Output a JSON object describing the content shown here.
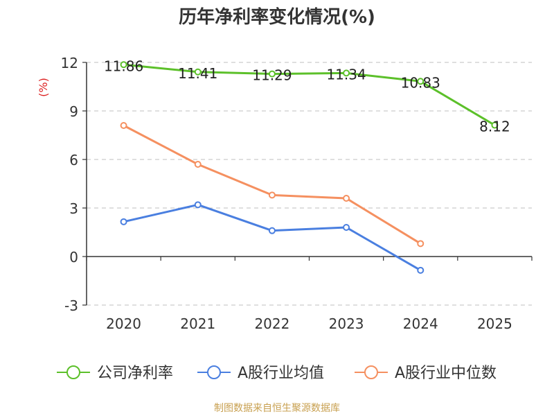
{
  "chart_data": {
    "type": "line",
    "title": "历年净利率变化情况(%)",
    "ylabel": "(%)",
    "categories": [
      "2020",
      "2021",
      "2022",
      "2023",
      "2024",
      "2025"
    ],
    "ylim": [
      -3,
      12
    ],
    "yticks": [
      12,
      9,
      6,
      3,
      0,
      -3
    ],
    "grid": true,
    "legend_position": "bottom",
    "series": [
      {
        "name": "公司净利率",
        "color": "#5cc02a",
        "values": [
          11.86,
          11.41,
          11.29,
          11.34,
          10.83,
          8.12
        ],
        "labels": [
          "11.86",
          "11.41",
          "11.29",
          "11.34",
          "10.83",
          "8.12"
        ]
      },
      {
        "name": "A股行业均值",
        "color": "#4a7fe0",
        "values": [
          2.15,
          3.2,
          1.6,
          1.8,
          -0.85,
          null
        ]
      },
      {
        "name": "A股行业中位数",
        "color": "#f59060",
        "values": [
          8.1,
          5.7,
          3.8,
          3.6,
          0.8,
          null
        ]
      }
    ]
  },
  "source": "制图数据来自恒生聚源数据库"
}
